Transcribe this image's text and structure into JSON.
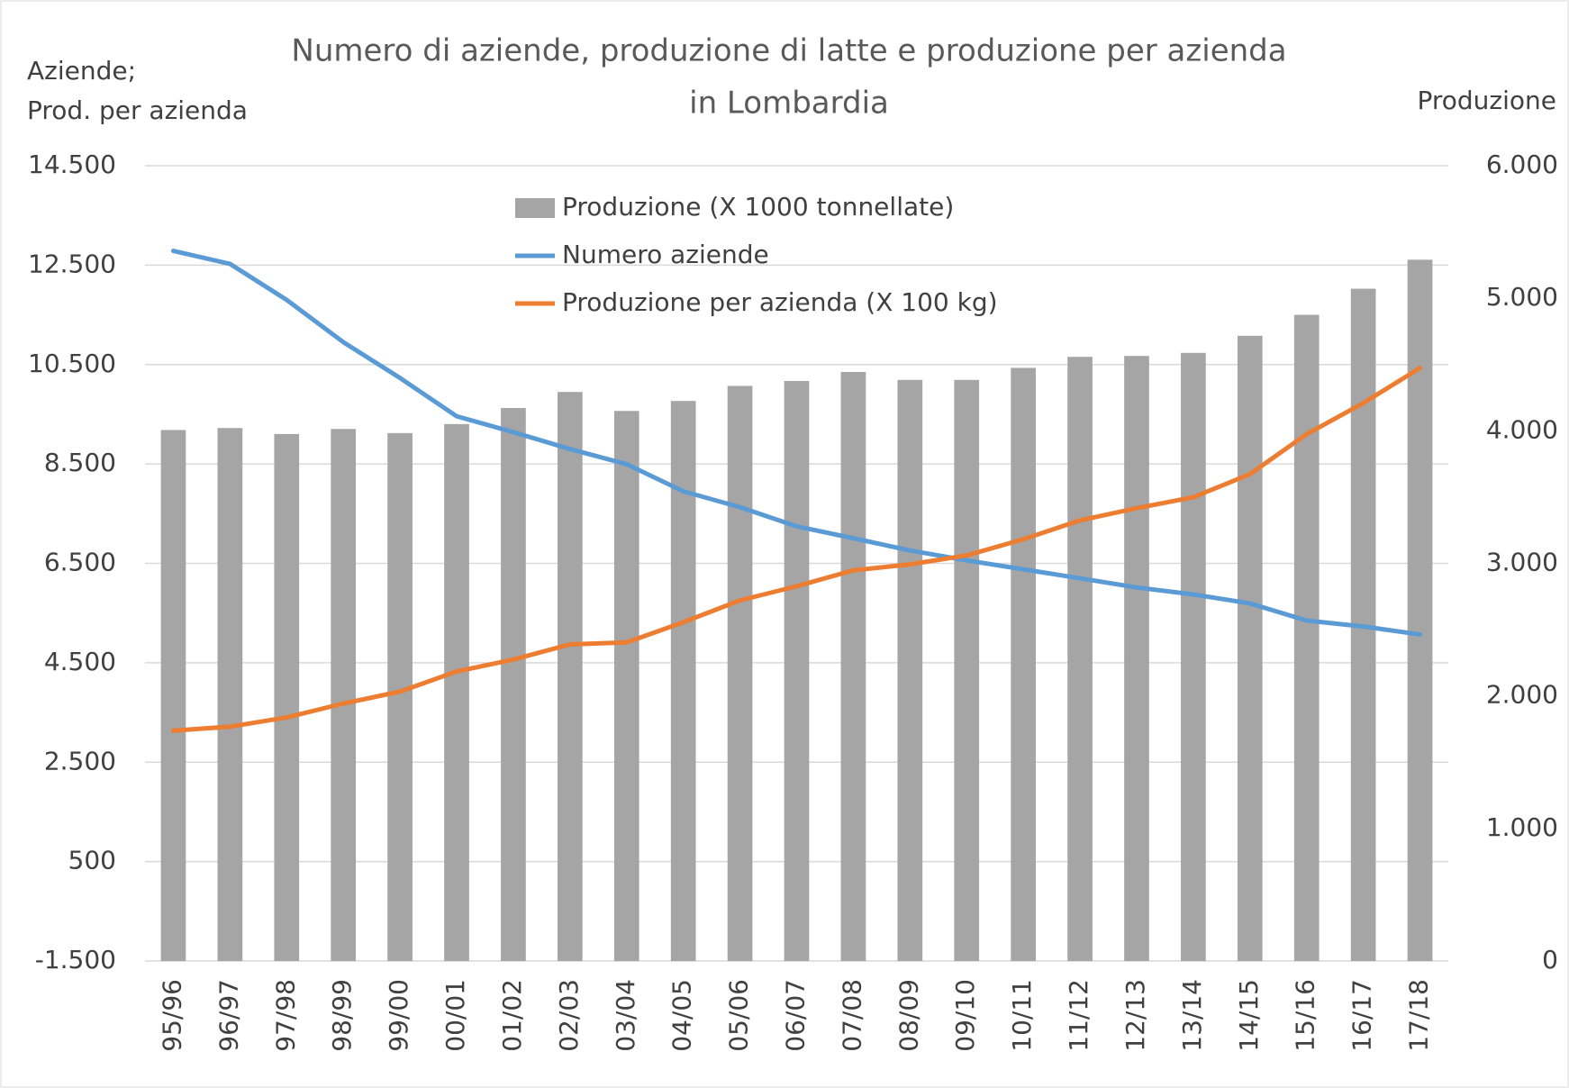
{
  "chart_data": {
    "type": "bar-line",
    "title": [
      "Numero di aziende, produzione di latte e produzione per azienda",
      "in Lombardia"
    ],
    "y_label": [
      "Aziende;",
      "Prod. per azienda"
    ],
    "y2_label": "Produzione",
    "categories": [
      "95/96",
      "96/97",
      "97/98",
      "98/99",
      "99/00",
      "00/01",
      "01/02",
      "02/03",
      "03/04",
      "04/05",
      "05/06",
      "06/07",
      "07/08",
      "08/09",
      "09/10",
      "10/11",
      "11/12",
      "12/13",
      "13/14",
      "14/15",
      "15/16",
      "16/17",
      "17/18"
    ],
    "series": [
      {
        "name": "Produzione (X 1000 tonnellate)",
        "type": "bar",
        "axis": "y2",
        "color": "#a5a5a5",
        "values": [
          4006,
          4021,
          3976,
          4014,
          3983,
          4051,
          4172,
          4293,
          4150,
          4225,
          4339,
          4376,
          4444,
          4384,
          4384,
          4475,
          4558,
          4565,
          4588,
          4717,
          4875,
          5072,
          5291
        ]
      },
      {
        "name": "Numero aziende",
        "type": "line",
        "color": "#5b9bd5",
        "values": [
          12787,
          12525,
          11800,
          10950,
          10230,
          9460,
          9140,
          8800,
          8495,
          7950,
          7630,
          7245,
          7005,
          6760,
          6560,
          6380,
          6200,
          6015,
          5875,
          5695,
          5350,
          5230,
          5070
        ]
      },
      {
        "name": "Produzione per azienda (X 100 kg)",
        "type": "line",
        "color": "#ed7d31",
        "values": [
          3135,
          3215,
          3400,
          3680,
          3920,
          4325,
          4565,
          4870,
          4910,
          5315,
          5755,
          6040,
          6360,
          6480,
          6660,
          6985,
          7365,
          7610,
          7830,
          8295,
          9100,
          9725,
          10430
        ]
      }
    ],
    "ylim": [
      -1500,
      14500
    ],
    "yticks": [
      {
        "value": -1500,
        "label": "-1.500"
      },
      500,
      {
        "value": 2500,
        "label": "2.500"
      },
      {
        "value": 4500,
        "label": "4.500"
      },
      {
        "value": 6500,
        "label": "6.500"
      },
      {
        "value": 8500,
        "label": "8.500"
      },
      {
        "value": 10500,
        "label": "10.500"
      },
      {
        "value": 12500,
        "label": "12.500"
      },
      {
        "value": 14500,
        "label": "14.500"
      }
    ],
    "y2lim": [
      0,
      6000
    ],
    "y2ticks": [
      0,
      {
        "value": 1000,
        "label": "1.000"
      },
      {
        "value": 2000,
        "label": "2.000"
      },
      {
        "value": 3000,
        "label": "3.000"
      },
      {
        "value": 4000,
        "label": "4.000"
      },
      {
        "value": 5000,
        "label": "5.000"
      },
      {
        "value": 6000,
        "label": "6.000"
      }
    ],
    "grid": true,
    "legend": "top"
  }
}
